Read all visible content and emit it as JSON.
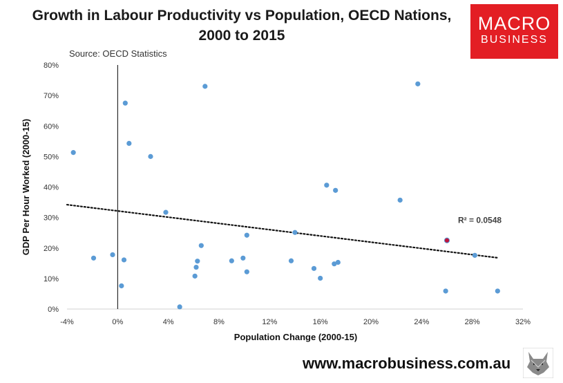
{
  "header": {
    "title_line1": "Growth in Labour Productivity vs Population, OECD Nations,",
    "title_line2": "2000 to 2015",
    "source": "Source: OECD Statistics"
  },
  "logo": {
    "line1": "MACRO",
    "line2": "BUSINESS"
  },
  "footer": {
    "url": "www.macrobusiness.com.au"
  },
  "colors": {
    "point": "#5b9bd5",
    "highlight": "#c0143c",
    "trend": "#111111",
    "logo_bg": "#e31e24"
  },
  "chart_data": {
    "type": "scatter",
    "title": "Growth in Labour Productivity vs Population, OECD Nations, 2000 to 2015",
    "xlabel": "Population Change (2000-15)",
    "ylabel": "GDP Per Hour Worked (2000-15)",
    "xlim": [
      -4,
      32
    ],
    "ylim": [
      0,
      80
    ],
    "xticks": [
      -4,
      0,
      4,
      8,
      12,
      16,
      20,
      24,
      28,
      32
    ],
    "xtick_labels": [
      "-4%",
      "0%",
      "4%",
      "8%",
      "12%",
      "16%",
      "20%",
      "24%",
      "28%",
      "32%"
    ],
    "yticks": [
      0,
      10,
      20,
      30,
      40,
      50,
      60,
      70,
      80
    ],
    "ytick_labels": [
      "0%",
      "10%",
      "20%",
      "30%",
      "40%",
      "50%",
      "60%",
      "70%",
      "80%"
    ],
    "grid": false,
    "points": [
      {
        "x": -3.5,
        "y": 51.3
      },
      {
        "x": -1.9,
        "y": 16.7
      },
      {
        "x": -0.4,
        "y": 17.8
      },
      {
        "x": 0.3,
        "y": 7.6
      },
      {
        "x": 0.5,
        "y": 16.1
      },
      {
        "x": 0.6,
        "y": 67.5
      },
      {
        "x": 0.9,
        "y": 54.3
      },
      {
        "x": 2.6,
        "y": 50.0
      },
      {
        "x": 3.8,
        "y": 31.7
      },
      {
        "x": 4.9,
        "y": 0.7
      },
      {
        "x": 6.1,
        "y": 10.8
      },
      {
        "x": 6.2,
        "y": 13.7
      },
      {
        "x": 6.3,
        "y": 15.7
      },
      {
        "x": 6.6,
        "y": 20.8
      },
      {
        "x": 6.9,
        "y": 73.0
      },
      {
        "x": 9.0,
        "y": 15.8
      },
      {
        "x": 9.9,
        "y": 16.7
      },
      {
        "x": 10.2,
        "y": 12.2
      },
      {
        "x": 10.2,
        "y": 24.2
      },
      {
        "x": 13.7,
        "y": 15.8
      },
      {
        "x": 14.0,
        "y": 25.1
      },
      {
        "x": 15.5,
        "y": 13.3
      },
      {
        "x": 16.0,
        "y": 10.1
      },
      {
        "x": 16.5,
        "y": 40.6
      },
      {
        "x": 17.1,
        "y": 14.8
      },
      {
        "x": 17.2,
        "y": 38.9
      },
      {
        "x": 17.4,
        "y": 15.3
      },
      {
        "x": 22.3,
        "y": 35.7
      },
      {
        "x": 23.7,
        "y": 73.8
      },
      {
        "x": 25.9,
        "y": 5.9
      },
      {
        "x": 26.0,
        "y": 22.5,
        "highlight": true
      },
      {
        "x": 28.2,
        "y": 17.6
      },
      {
        "x": 30.0,
        "y": 5.9
      }
    ],
    "trendline": {
      "style": "dotted",
      "x": [
        -4,
        30
      ],
      "y": [
        34.2,
        16.8
      ]
    },
    "annotation": "R² = 0.0548"
  }
}
